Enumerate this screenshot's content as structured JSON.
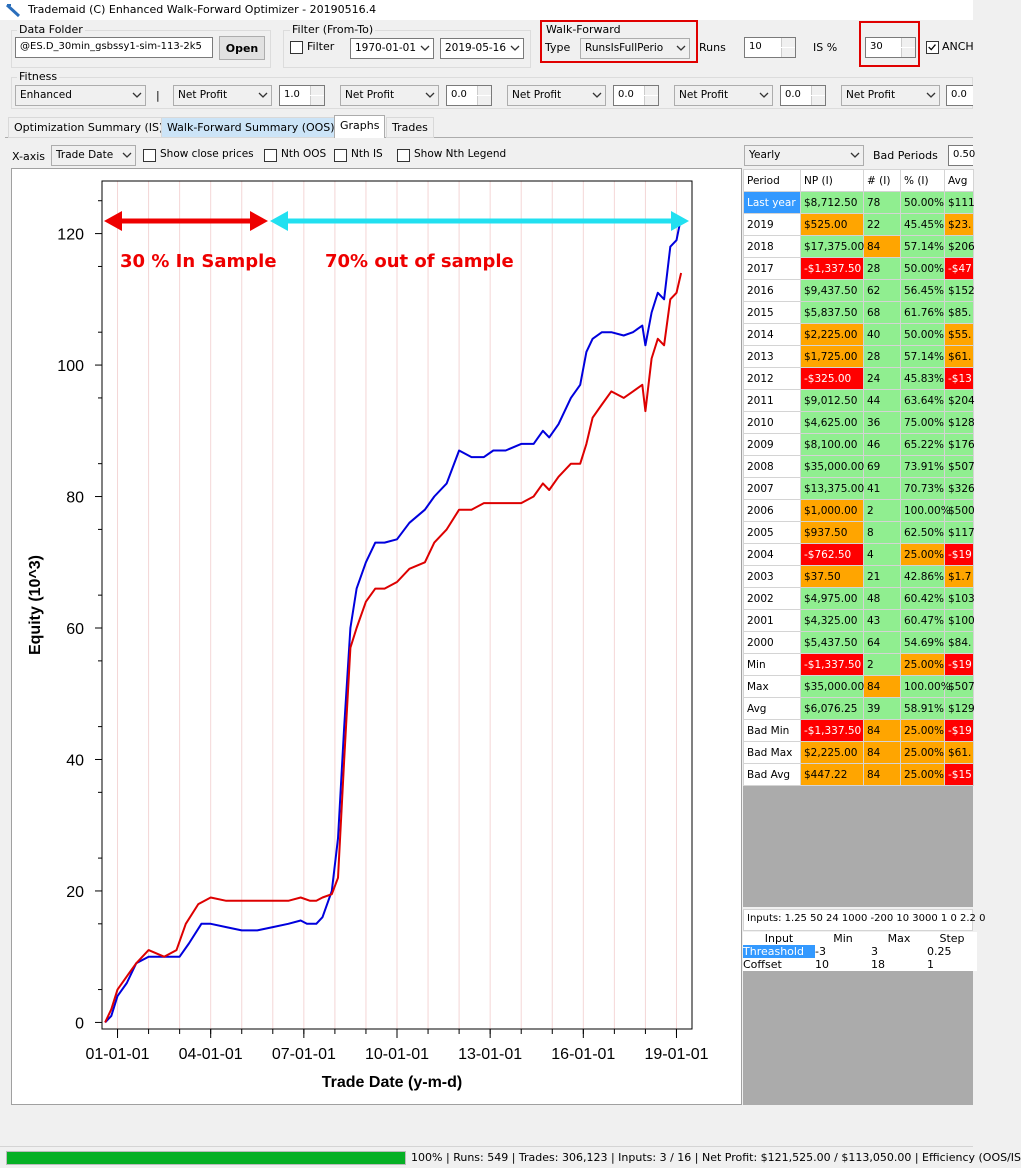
{
  "window": {
    "title": "Trademaid (C) Enhanced Walk-Forward Optimizer - 20190516.4"
  },
  "data_folder": {
    "label": "Data Folder",
    "value": "@ES.D_30min_gsbssy1-sim-113-2k5",
    "open_label": "Open"
  },
  "filter": {
    "label": "Filter (From-To)",
    "checkbox_label": "Filter",
    "from": "1970-01-01",
    "to": "2019-05-16"
  },
  "walk_forward": {
    "label": "Walk-Forward",
    "type_label": "Type",
    "type_value": "RunsIsFullPerio",
    "runs_label": "Runs",
    "runs_value": "10",
    "is_label": "IS %",
    "is_value": "30",
    "anch_label": "ANCH"
  },
  "fitness": {
    "label": "Fitness",
    "mode": "Enhanced",
    "separator": "|",
    "metrics": [
      {
        "name": "Net Profit",
        "weight": "1.0"
      },
      {
        "name": "Net Profit",
        "weight": "0.0"
      },
      {
        "name": "Net Profit",
        "weight": "0.0"
      },
      {
        "name": "Net Profit",
        "weight": "0.0"
      },
      {
        "name": "Net Profit",
        "weight": "0.0"
      }
    ]
  },
  "tabs": [
    "Optimization Summary (IS)",
    "Walk-Forward Summary (OOS)",
    "Graphs",
    "Trades"
  ],
  "graph_options": {
    "xaxis_label": "X-axis",
    "xaxis_value": "Trade Date",
    "show_close": "Show close prices",
    "nth_oos": "Nth OOS",
    "nth_is": "Nth IS",
    "show_nth_legend": "Show Nth Legend"
  },
  "period_options": {
    "period": "Yearly",
    "bad_label": "Bad Periods",
    "bad_value": "0.50"
  },
  "chart_annotations": {
    "in_sample": "30 % In Sample",
    "out_sample": "70% out of sample"
  },
  "chart_data": {
    "type": "line",
    "xlabel": "Trade Date (y-m-d)",
    "ylabel": "Equity (10^3)",
    "x_ticks": [
      "01-01-01",
      "04-01-01",
      "07-01-01",
      "10-01-01",
      "13-01-01",
      "16-01-01",
      "19-01-01"
    ],
    "y_ticks": [
      0,
      20,
      40,
      60,
      80,
      100,
      120
    ],
    "ylim": [
      -1,
      128
    ],
    "xlim": [
      2000.5,
      2019.5
    ],
    "grid": false,
    "series": [
      {
        "color": "#0000dd",
        "x": [
          2000.6,
          2000.8,
          2001.0,
          2001.3,
          2001.6,
          2002.0,
          2002.5,
          2003.0,
          2003.3,
          2003.7,
          2004.0,
          2004.5,
          2005.0,
          2005.5,
          2006.0,
          2006.5,
          2006.9,
          2007.1,
          2007.4,
          2007.6,
          2007.9,
          2008.1,
          2008.3,
          2008.5,
          2008.7,
          2009.0,
          2009.3,
          2009.6,
          2010.0,
          2010.4,
          2010.9,
          2011.2,
          2011.6,
          2012.0,
          2012.4,
          2012.8,
          2013.1,
          2013.5,
          2014.0,
          2014.4,
          2014.7,
          2014.9,
          2015.2,
          2015.6,
          2015.9,
          2016.1,
          2016.3,
          2016.6,
          2016.9,
          2017.3,
          2017.6,
          2017.9,
          2018.0,
          2018.2,
          2018.4,
          2018.6,
          2018.8,
          2019.0,
          2019.15
        ],
        "y": [
          0,
          1,
          4,
          6,
          9,
          10,
          10,
          10,
          12,
          15,
          15,
          14.5,
          14,
          14,
          14.5,
          15,
          15.5,
          15,
          15,
          16,
          20,
          28,
          45,
          60,
          66,
          70,
          73,
          73,
          73.5,
          76,
          78,
          80,
          82,
          87,
          86,
          86,
          87,
          87,
          88,
          88,
          90,
          89,
          91,
          95,
          97,
          102,
          104,
          105,
          105,
          104.5,
          105,
          106,
          103,
          108,
          111,
          110,
          118,
          119,
          122.5
        ]
      },
      {
        "color": "#dd0000",
        "x": [
          2000.6,
          2000.8,
          2001.0,
          2001.3,
          2001.6,
          2002.0,
          2002.5,
          2002.9,
          2003.2,
          2003.6,
          2004.0,
          2004.5,
          2005.0,
          2005.5,
          2006.0,
          2006.5,
          2006.9,
          2007.2,
          2007.4,
          2007.6,
          2007.9,
          2008.1,
          2008.3,
          2008.5,
          2008.7,
          2009.0,
          2009.3,
          2009.6,
          2010.0,
          2010.4,
          2010.9,
          2011.2,
          2011.6,
          2012.0,
          2012.4,
          2012.8,
          2013.1,
          2013.5,
          2014.0,
          2014.4,
          2014.7,
          2014.9,
          2015.2,
          2015.6,
          2015.9,
          2016.1,
          2016.3,
          2016.6,
          2016.9,
          2017.3,
          2017.6,
          2017.9,
          2018.0,
          2018.2,
          2018.4,
          2018.6,
          2018.8,
          2019.0,
          2019.15
        ],
        "y": [
          0,
          2,
          5,
          7,
          9,
          11,
          10,
          11,
          15,
          18,
          19,
          18.5,
          18.5,
          18.5,
          18.5,
          18.5,
          19,
          18.5,
          18.5,
          19,
          19.5,
          22,
          40,
          57,
          60,
          64,
          66,
          66,
          67,
          69,
          70,
          73,
          75,
          78,
          78,
          79,
          79,
          79,
          79,
          80,
          82,
          81,
          83,
          85,
          85,
          88,
          92,
          94,
          96,
          95,
          96,
          97,
          93,
          101,
          104,
          103,
          110,
          111,
          114
        ]
      }
    ]
  },
  "results_table": {
    "headers": [
      "Period",
      "NP (I)",
      "# (I)",
      "% (I)",
      "Avg"
    ],
    "rows": [
      [
        "Last year",
        "$8,712.50",
        "78",
        "50.00%",
        "$111"
      ],
      [
        "2019",
        "$525.00",
        "22",
        "45.45%",
        "$23."
      ],
      [
        "2018",
        "$17,375.00",
        "84",
        "57.14%",
        "$206"
      ],
      [
        "2017",
        "-$1,337.50",
        "28",
        "50.00%",
        "-$47"
      ],
      [
        "2016",
        "$9,437.50",
        "62",
        "56.45%",
        "$152"
      ],
      [
        "2015",
        "$5,837.50",
        "68",
        "61.76%",
        "$85."
      ],
      [
        "2014",
        "$2,225.00",
        "40",
        "50.00%",
        "$55."
      ],
      [
        "2013",
        "$1,725.00",
        "28",
        "57.14%",
        "$61."
      ],
      [
        "2012",
        "-$325.00",
        "24",
        "45.83%",
        "-$13"
      ],
      [
        "2011",
        "$9,012.50",
        "44",
        "63.64%",
        "$204"
      ],
      [
        "2010",
        "$4,625.00",
        "36",
        "75.00%",
        "$128"
      ],
      [
        "2009",
        "$8,100.00",
        "46",
        "65.22%",
        "$176"
      ],
      [
        "2008",
        "$35,000.00",
        "69",
        "73.91%",
        "$507"
      ],
      [
        "2007",
        "$13,375.00",
        "41",
        "70.73%",
        "$326"
      ],
      [
        "2006",
        "$1,000.00",
        "2",
        "100.00%",
        "$500"
      ],
      [
        "2005",
        "$937.50",
        "8",
        "62.50%",
        "$117"
      ],
      [
        "2004",
        "-$762.50",
        "4",
        "25.00%",
        "-$19"
      ],
      [
        "2003",
        "$37.50",
        "21",
        "42.86%",
        "$1.7"
      ],
      [
        "2002",
        "$4,975.00",
        "48",
        "60.42%",
        "$103"
      ],
      [
        "2001",
        "$4,325.00",
        "43",
        "60.47%",
        "$100"
      ],
      [
        "2000",
        "$5,437.50",
        "64",
        "54.69%",
        "$84."
      ],
      [
        "Min",
        "-$1,337.50",
        "2",
        "25.00%",
        "-$19"
      ],
      [
        "Max",
        "$35,000.00",
        "84",
        "100.00%",
        "$507"
      ],
      [
        "Avg",
        "$6,076.25",
        "39",
        "58.91%",
        "$129"
      ],
      [
        "Bad Min",
        "-$1,337.50",
        "84",
        "25.00%",
        "-$19"
      ],
      [
        "Bad Max",
        "$2,225.00",
        "84",
        "25.00%",
        "$61."
      ],
      [
        "Bad Avg",
        "$447.22",
        "84",
        "25.00%",
        "-$15"
      ]
    ],
    "cell_colors": [
      [
        "#3399ff",
        "#90ee90",
        "#90ee90",
        "#90ee90",
        "#90ee90"
      ],
      [
        "#fff",
        "#ffa500",
        "#90ee90",
        "#90ee90",
        "#ffa500"
      ],
      [
        "#fff",
        "#90ee90",
        "#ffa500",
        "#90ee90",
        "#90ee90"
      ],
      [
        "#fff",
        "#ff0000",
        "#90ee90",
        "#90ee90",
        "#ff0000"
      ],
      [
        "#fff",
        "#90ee90",
        "#90ee90",
        "#90ee90",
        "#90ee90"
      ],
      [
        "#fff",
        "#90ee90",
        "#90ee90",
        "#90ee90",
        "#90ee90"
      ],
      [
        "#fff",
        "#ffa500",
        "#90ee90",
        "#90ee90",
        "#ffa500"
      ],
      [
        "#fff",
        "#ffa500",
        "#90ee90",
        "#90ee90",
        "#ffa500"
      ],
      [
        "#fff",
        "#ff0000",
        "#90ee90",
        "#90ee90",
        "#ff0000"
      ],
      [
        "#fff",
        "#90ee90",
        "#90ee90",
        "#90ee90",
        "#90ee90"
      ],
      [
        "#fff",
        "#90ee90",
        "#90ee90",
        "#90ee90",
        "#90ee90"
      ],
      [
        "#fff",
        "#90ee90",
        "#90ee90",
        "#90ee90",
        "#90ee90"
      ],
      [
        "#fff",
        "#90ee90",
        "#90ee90",
        "#90ee90",
        "#90ee90"
      ],
      [
        "#fff",
        "#90ee90",
        "#90ee90",
        "#90ee90",
        "#90ee90"
      ],
      [
        "#fff",
        "#ffa500",
        "#90ee90",
        "#90ee90",
        "#90ee90"
      ],
      [
        "#fff",
        "#ffa500",
        "#90ee90",
        "#90ee90",
        "#90ee90"
      ],
      [
        "#fff",
        "#ff0000",
        "#90ee90",
        "#ffa500",
        "#ff0000"
      ],
      [
        "#fff",
        "#ffa500",
        "#90ee90",
        "#90ee90",
        "#ffa500"
      ],
      [
        "#fff",
        "#90ee90",
        "#90ee90",
        "#90ee90",
        "#90ee90"
      ],
      [
        "#fff",
        "#90ee90",
        "#90ee90",
        "#90ee90",
        "#90ee90"
      ],
      [
        "#fff",
        "#90ee90",
        "#90ee90",
        "#90ee90",
        "#90ee90"
      ],
      [
        "#fff",
        "#ff0000",
        "#90ee90",
        "#ffa500",
        "#ff0000"
      ],
      [
        "#fff",
        "#90ee90",
        "#ffa500",
        "#90ee90",
        "#90ee90"
      ],
      [
        "#fff",
        "#90ee90",
        "#90ee90",
        "#90ee90",
        "#90ee90"
      ],
      [
        "#fff",
        "#ff0000",
        "#ffa500",
        "#ffa500",
        "#ff0000"
      ],
      [
        "#fff",
        "#ffa500",
        "#ffa500",
        "#ffa500",
        "#ffa500"
      ],
      [
        "#fff",
        "#ffa500",
        "#ffa500",
        "#ffa500",
        "#ff0000"
      ]
    ]
  },
  "inputs_summary": "Inputs: 1.25 50 24 1000 -200 10 3000 1 0 2.2 0",
  "inputs_table": {
    "headers": [
      "Input",
      "Min",
      "Max",
      "Step"
    ],
    "rows": [
      [
        "Threashold",
        "-3",
        "3",
        "0.25"
      ],
      [
        "Coffset",
        "10",
        "18",
        "1"
      ]
    ]
  },
  "status": {
    "progress_percent": "100%",
    "progress": 1.0,
    "text": "| Runs: 549 | Trades: 306,123 | Inputs: 3 / 16 | Net Profit: $121,525.00 / $113,050.00 | Efficiency (OOS/IS"
  }
}
